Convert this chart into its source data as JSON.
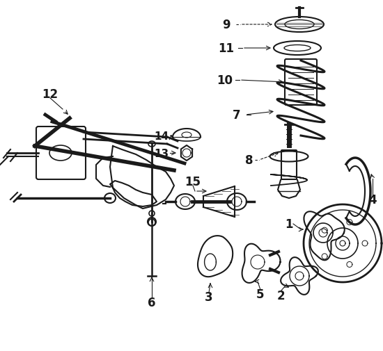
{
  "bg_color": "#ffffff",
  "lc": "#1a1a1a",
  "figsize": [
    5.5,
    5.06
  ],
  "dpi": 100,
  "xlim": [
    0,
    550
  ],
  "ylim": [
    0,
    506
  ]
}
